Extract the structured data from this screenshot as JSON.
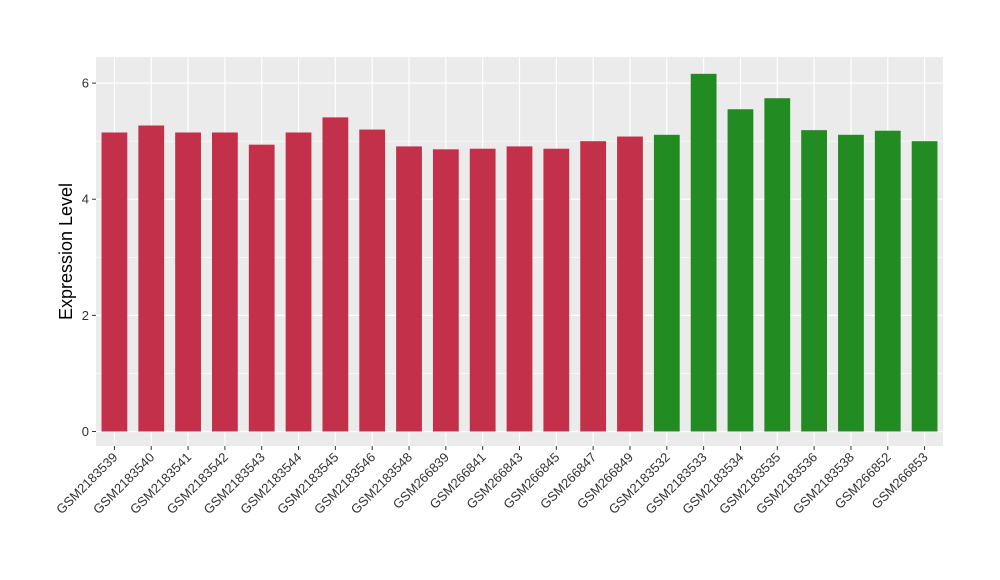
{
  "chart_data": {
    "type": "bar",
    "ylabel": "Expression Level",
    "xlabel": "",
    "ylim": [
      -0.25,
      6.45
    ],
    "yticks": [
      0,
      2,
      4,
      6
    ],
    "grid": true,
    "categories": [
      "GSM2183539",
      "GSM2183540",
      "GSM2183541",
      "GSM2183542",
      "GSM2183543",
      "GSM2183544",
      "GSM2183545",
      "GSM2183546",
      "GSM2183548",
      "GSM266839",
      "GSM266841",
      "GSM266843",
      "GSM266845",
      "GSM266847",
      "GSM266849",
      "GSM2183532",
      "GSM2183533",
      "GSM2183534",
      "GSM2183535",
      "GSM2183536",
      "GSM2183538",
      "GSM266852",
      "GSM266853"
    ],
    "values": [
      5.15,
      5.27,
      5.15,
      5.15,
      4.94,
      5.15,
      5.41,
      5.2,
      4.91,
      4.86,
      4.87,
      4.91,
      4.87,
      5.0,
      5.08,
      5.11,
      6.16,
      5.55,
      5.74,
      5.19,
      5.11,
      5.18,
      5.0
    ],
    "groups": [
      "red",
      "red",
      "red",
      "red",
      "red",
      "red",
      "red",
      "red",
      "red",
      "red",
      "red",
      "red",
      "red",
      "red",
      "red",
      "green",
      "green",
      "green",
      "green",
      "green",
      "green",
      "green",
      "green"
    ],
    "colors": {
      "red": "#c3304a",
      "green": "#228b22",
      "panel": "#ebebeb",
      "grid": "#ffffff"
    }
  }
}
